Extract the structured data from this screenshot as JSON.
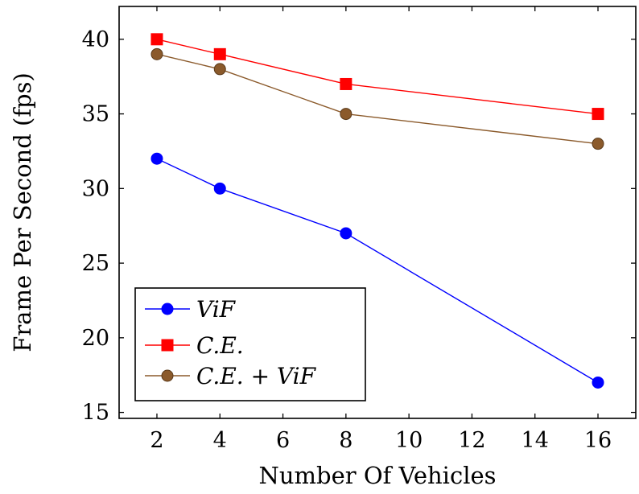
{
  "chart_data": {
    "type": "line",
    "title": "",
    "xlabel": "Number Of Vehicles",
    "ylabel": "Frame Per Second (fps)",
    "x": [
      2,
      4,
      8,
      16
    ],
    "xlim": [
      0.8,
      17.2
    ],
    "ylim": [
      14.6,
      42.2
    ],
    "xticks": [
      2,
      4,
      6,
      8,
      10,
      12,
      14,
      16
    ],
    "yticks": [
      15,
      20,
      25,
      30,
      35,
      40
    ],
    "grid": false,
    "legend_position": "bottom-left",
    "series": [
      {
        "name": "ViF",
        "color": "#0000ff",
        "marker": "circle",
        "values": [
          32,
          30,
          27,
          17
        ]
      },
      {
        "name": "C.E.",
        "color": "#ff0000",
        "marker": "square",
        "values": [
          40,
          39,
          37,
          35
        ]
      },
      {
        "name": "C.E. + ViF",
        "color": "#8b5a2b",
        "marker": "circle",
        "values": [
          39,
          38,
          35,
          33
        ]
      }
    ]
  }
}
